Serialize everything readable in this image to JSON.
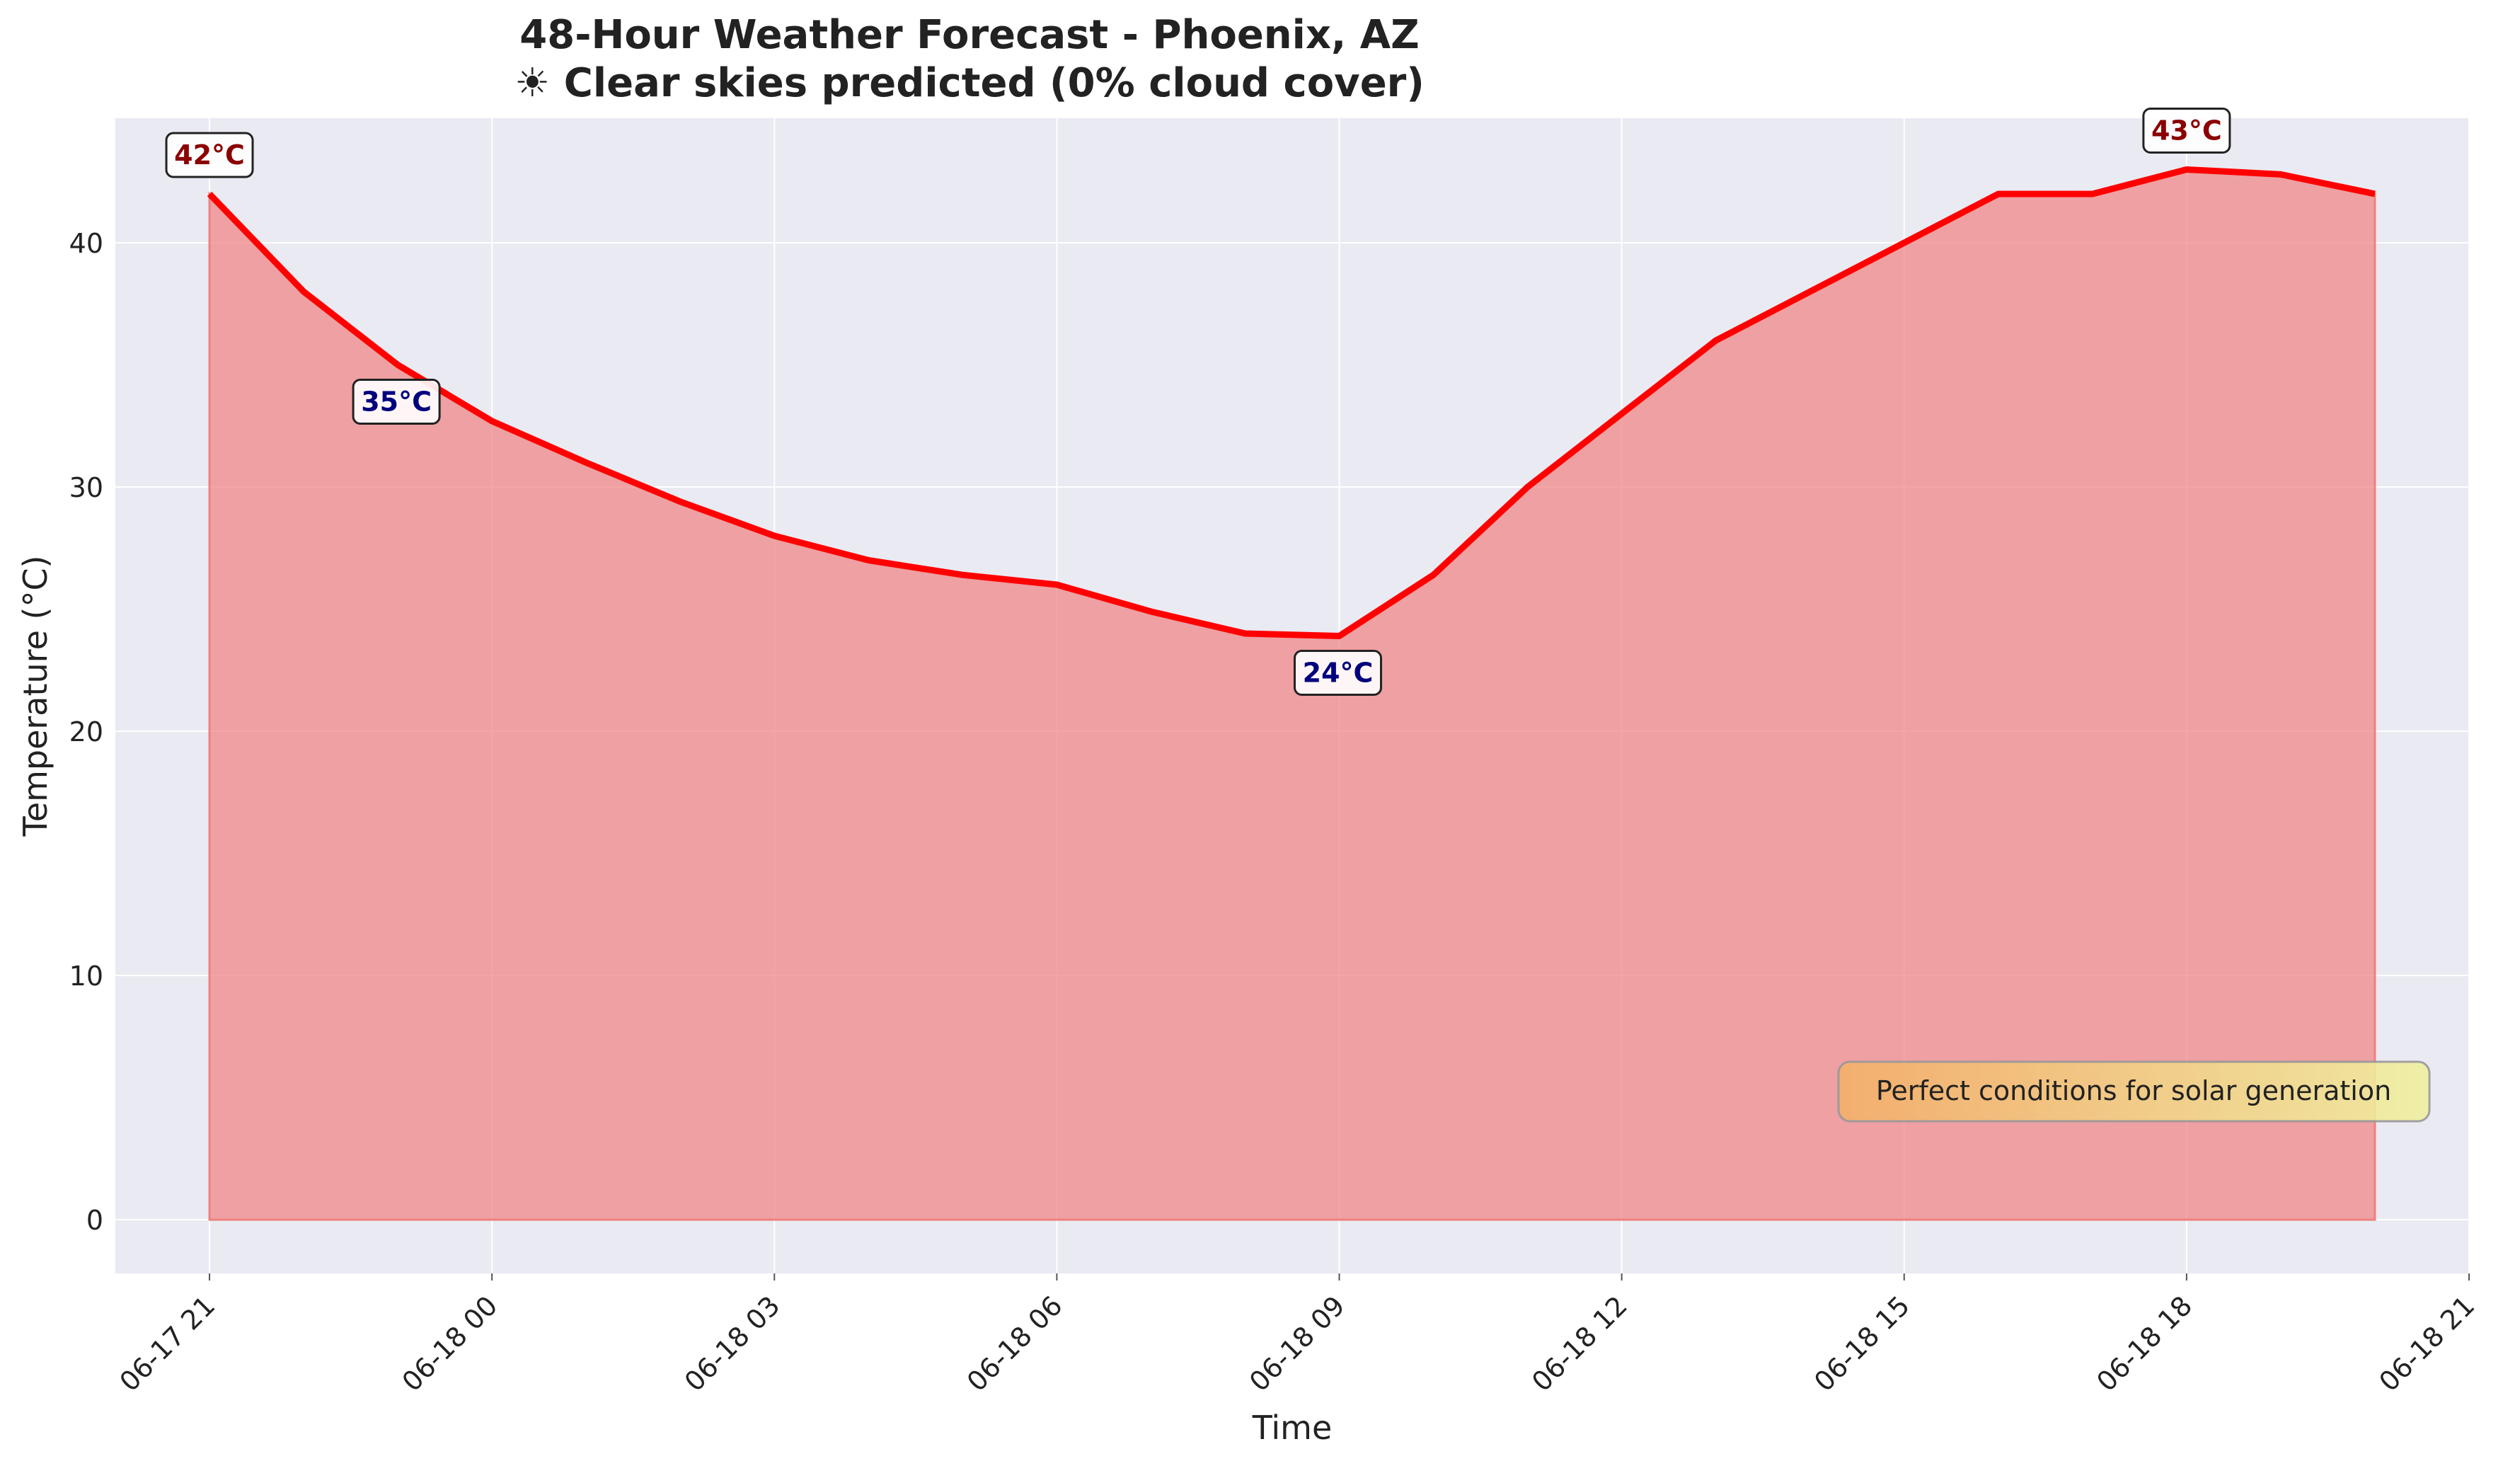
{
  "chart_data": {
    "type": "area",
    "title": "48-Hour Weather Forecast - Phoenix, AZ",
    "subtitle": "☀ Clear skies predicted (0% cloud cover)",
    "xlabel": "Time",
    "ylabel": "Temperature (°C)",
    "x_ticks": [
      "06-17 21",
      "06-18 00",
      "06-18 03",
      "06-18 06",
      "06-18 09",
      "06-18 12",
      "06-18 15",
      "06-18 18",
      "06-18 21"
    ],
    "y_ticks": [
      "0",
      "10",
      "20",
      "30",
      "40"
    ],
    "ylim": [
      -2.2,
      45.1
    ],
    "xlim": [
      "2024-06-17 20:00",
      "2024-06-18 21:00"
    ],
    "grid": true,
    "series": [
      {
        "color": "#ff0000",
        "fill_color": "#f08080",
        "x": [
          "2024-06-17 21:00",
          "2024-06-17 22:00",
          "2024-06-17 23:00",
          "2024-06-18 00:00",
          "2024-06-18 01:00",
          "2024-06-18 02:00",
          "2024-06-18 03:00",
          "2024-06-18 04:00",
          "2024-06-18 05:00",
          "2024-06-18 06:00",
          "2024-06-18 07:00",
          "2024-06-18 08:00",
          "2024-06-18 09:00",
          "2024-06-18 10:00",
          "2024-06-18 11:00",
          "2024-06-18 12:00",
          "2024-06-18 13:00",
          "2024-06-18 14:00",
          "2024-06-18 15:00",
          "2024-06-18 16:00",
          "2024-06-18 17:00",
          "2024-06-18 18:00",
          "2024-06-18 19:00",
          "2024-06-18 20:00"
        ],
        "values": [
          42,
          38,
          35,
          32.7,
          31,
          29.4,
          28,
          27,
          26.4,
          26,
          24.9,
          24,
          23.9,
          26.4,
          30,
          33,
          36,
          38,
          40,
          42,
          42,
          43,
          42.8,
          42
        ]
      }
    ],
    "annotations": [
      {
        "text": "42°C",
        "x": "2024-06-17 21:00",
        "y": 42,
        "kind": "max",
        "color": "#8b0000"
      },
      {
        "text": "35°C",
        "x": "2024-06-17 23:00",
        "y": 35,
        "kind": "min",
        "color": "#00007f"
      },
      {
        "text": "24°C",
        "x": "2024-06-18 09:00",
        "y": 23.9,
        "kind": "min",
        "color": "#00007f"
      },
      {
        "text": "43°C",
        "x": "2024-06-18 18:00",
        "y": 43,
        "kind": "max",
        "color": "#8b0000"
      }
    ],
    "note": "Perfect conditions for solar generation"
  },
  "colors": {
    "plot_background": "#eaeaf2",
    "grid": "#ffffff",
    "line": "#ff0000",
    "fill": "#f08080",
    "max_label": "#8b0000",
    "min_label": "#00007f",
    "note_from": "#f4b06a",
    "note_to": "#f0f0a0"
  }
}
